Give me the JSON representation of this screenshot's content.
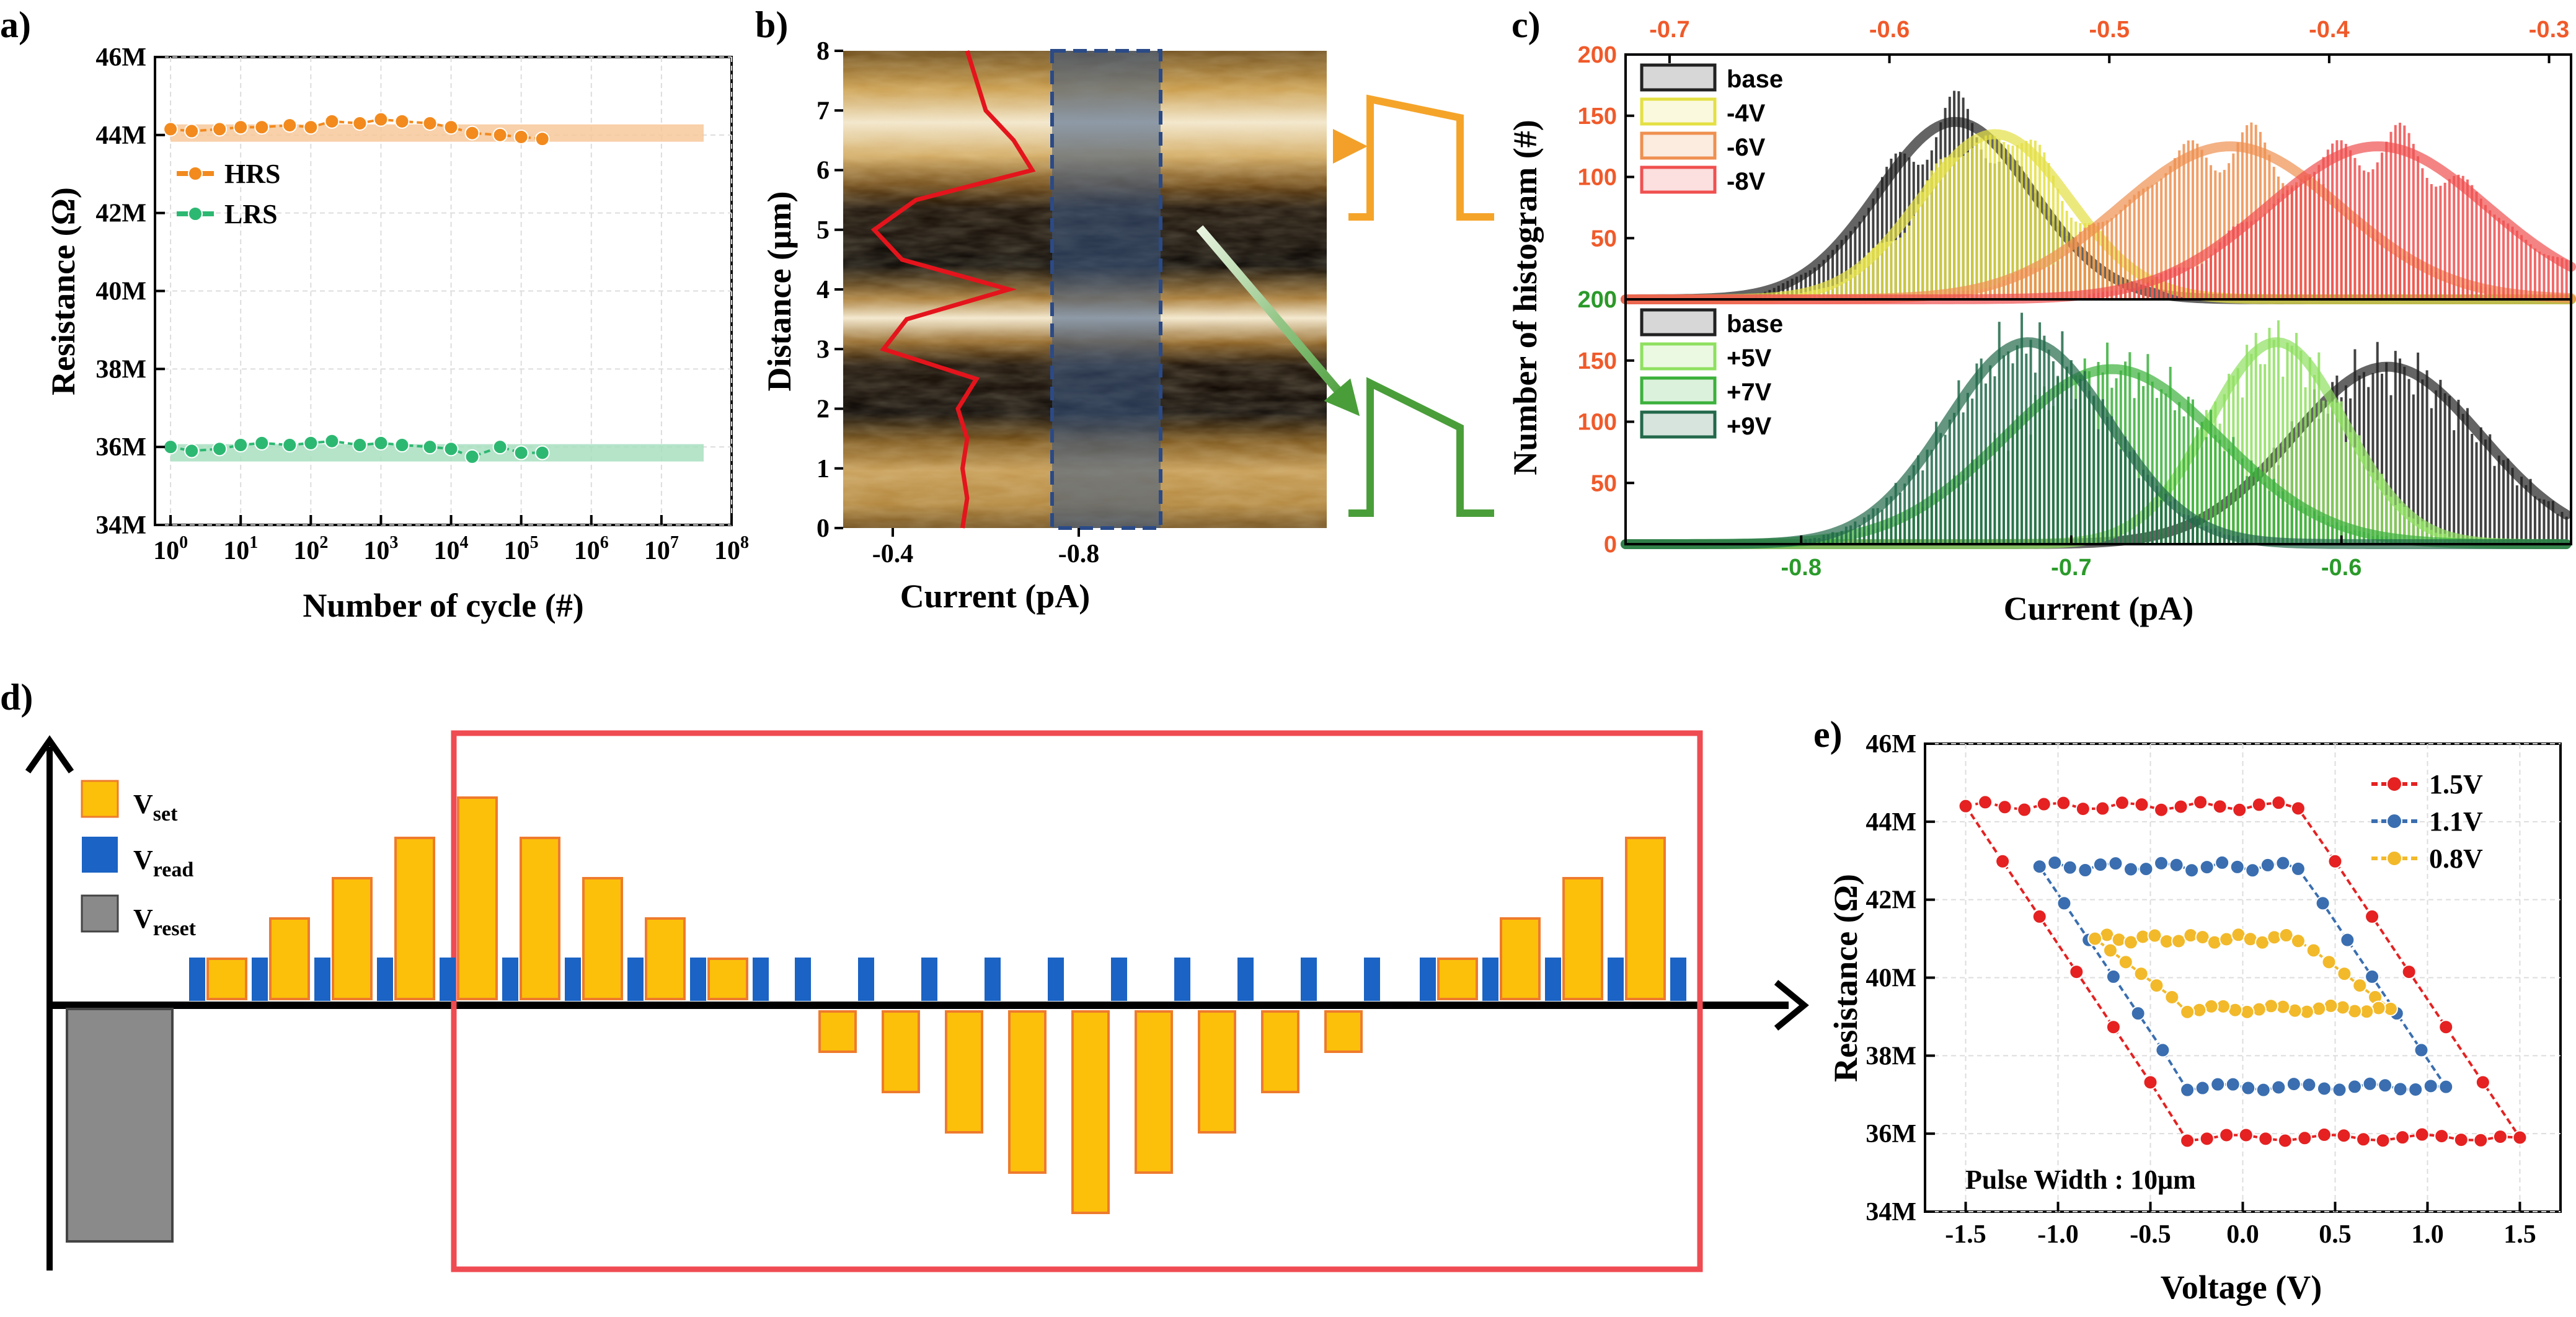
{
  "labels": {
    "a": "a)",
    "b": "b)",
    "c": "c)",
    "d": "d)",
    "e": "e)"
  },
  "chart_data": [
    {
      "id": "a",
      "type": "scatter",
      "xlabel": "Number of cycle (#)",
      "ylabel": "Resistance (Ω)",
      "xscale": "log",
      "xlim": [
        0.6,
        100000000
      ],
      "ylim": [
        34,
        46
      ],
      "xticks": [
        {
          "v": 1,
          "m": "10",
          "e": "0"
        },
        {
          "v": 10,
          "m": "10",
          "e": "1"
        },
        {
          "v": 100,
          "m": "10",
          "e": "2"
        },
        {
          "v": 1000,
          "m": "10",
          "e": "3"
        },
        {
          "v": 10000,
          "m": "10",
          "e": "4"
        },
        {
          "v": 100000,
          "m": "10",
          "e": "5"
        },
        {
          "v": 1000000,
          "m": "10",
          "e": "6"
        },
        {
          "v": 10000000,
          "m": "10",
          "e": "7"
        },
        {
          "v": 100000000,
          "m": "10",
          "e": "8"
        }
      ],
      "yticks": [
        {
          "v": 34,
          "t": "34M"
        },
        {
          "v": 36,
          "t": "36M"
        },
        {
          "v": 38,
          "t": "38M"
        },
        {
          "v": 40,
          "t": "40M"
        },
        {
          "v": 42,
          "t": "42M"
        },
        {
          "v": 44,
          "t": "44M"
        },
        {
          "v": 46,
          "t": "46M"
        }
      ],
      "legend": [
        "HRS",
        "LRS"
      ],
      "series": [
        {
          "name": "HRS",
          "color": "#f28a1e",
          "band": "#f7c89a",
          "bandY": 44.05,
          "x": [
            1,
            2,
            5,
            10,
            20,
            50,
            100,
            200,
            500,
            1000,
            2000,
            5000,
            10000,
            20000,
            50000,
            100000,
            200000
          ],
          "y": [
            44.15,
            44.1,
            44.15,
            44.2,
            44.2,
            44.25,
            44.2,
            44.35,
            44.3,
            44.4,
            44.35,
            44.3,
            44.2,
            44.05,
            44.0,
            43.95,
            43.9
          ]
        },
        {
          "name": "LRS",
          "color": "#2db872",
          "band": "#a8dfbf",
          "bandY": 35.85,
          "x": [
            1,
            2,
            5,
            10,
            20,
            50,
            100,
            200,
            500,
            1000,
            2000,
            5000,
            10000,
            20000,
            50000,
            100000,
            200000
          ],
          "y": [
            36.0,
            35.9,
            35.95,
            36.05,
            36.1,
            36.05,
            36.1,
            36.15,
            36.05,
            36.1,
            36.05,
            36.0,
            35.95,
            35.75,
            36.0,
            35.85,
            35.85
          ]
        }
      ]
    },
    {
      "id": "b",
      "type": "image-line",
      "xlabel": "Current (pA)",
      "ylabel": "Distance (μm)",
      "xticks": [
        "-0.4",
        "-0.8"
      ],
      "yticks": [
        "0",
        "1",
        "2",
        "3",
        "4",
        "5",
        "6",
        "7",
        "8"
      ],
      "profile": {
        "distance": [
          0,
          0.5,
          1,
          1.5,
          2,
          2.5,
          3,
          3.5,
          4,
          4.5,
          5,
          5.5,
          6,
          6.5,
          7,
          7.5,
          8
        ],
        "current": [
          -0.55,
          -0.56,
          -0.55,
          -0.56,
          -0.54,
          -0.58,
          -0.38,
          -0.43,
          -0.65,
          -0.42,
          -0.36,
          -0.45,
          -0.7,
          -0.66,
          -0.6,
          -0.58,
          -0.56
        ]
      }
    },
    {
      "id": "c-top",
      "type": "histogram",
      "ylabel": "Number of histogram (#)",
      "xlim": [
        -0.72,
        -0.29
      ],
      "ylim": [
        0,
        200
      ],
      "top_xticks": [
        "-0.7",
        "-0.6",
        "-0.5",
        "-0.4",
        "-0.3"
      ],
      "yticks": [
        "0",
        "50",
        "100",
        "150",
        "200"
      ],
      "series": [
        {
          "name": "base",
          "color": "#222222",
          "mu": -0.57,
          "sigma": 0.035,
          "peak": 145
        },
        {
          "name": "-4V",
          "color": "#e4e044",
          "mu": -0.552,
          "sigma": 0.034,
          "peak": 135
        },
        {
          "name": "-6V",
          "color": "#ee9050",
          "mu": -0.445,
          "sigma": 0.05,
          "peak": 125
        },
        {
          "name": "-8V",
          "color": "#f05050",
          "mu": -0.378,
          "sigma": 0.05,
          "peak": 125
        }
      ]
    },
    {
      "id": "c-bottom",
      "type": "histogram",
      "xlabel": "Current (pA)",
      "xlim": [
        -0.865,
        -0.515
      ],
      "ylim": [
        0,
        200
      ],
      "bottom_xticks": [
        "-0.8",
        "-0.7",
        "-0.6"
      ],
      "yticks": [
        "0",
        "50",
        "100",
        "150",
        "200"
      ],
      "series": [
        {
          "name": "base",
          "color": "#222222",
          "mu": -0.583,
          "sigma": 0.035,
          "peak": 145
        },
        {
          "name": "+5V",
          "color": "#8fe060",
          "mu": -0.624,
          "sigma": 0.025,
          "peak": 165
        },
        {
          "name": "+7V",
          "color": "#3cb13c",
          "mu": -0.685,
          "sigma": 0.04,
          "peak": 143
        },
        {
          "name": "+9V",
          "color": "#22694a",
          "mu": -0.716,
          "sigma": 0.03,
          "peak": 165
        }
      ]
    },
    {
      "id": "d",
      "type": "pulse-scheme",
      "legend": [
        {
          "main": "V",
          "sub": "set"
        },
        {
          "main": "V",
          "sub": "read"
        },
        {
          "main": "V",
          "sub": "reset"
        }
      ],
      "set_levels": [
        1,
        2,
        3,
        4,
        5,
        4,
        3,
        2,
        1
      ],
      "negative_levels": [
        1,
        2,
        3,
        4,
        5,
        4,
        3,
        2,
        1
      ],
      "return_levels": [
        1,
        2,
        3,
        4
      ]
    },
    {
      "id": "e",
      "type": "line",
      "xlabel": "Voltage (V)",
      "ylabel": "Resistance (Ω)",
      "xlim": [
        -1.72,
        1.72
      ],
      "ylim": [
        34,
        46
      ],
      "xticks": [
        "-1.5",
        "-1.0",
        "-0.5",
        "0.0",
        "0.5",
        "1.0",
        "1.5"
      ],
      "yticks": [
        "34M",
        "36M",
        "38M",
        "40M",
        "42M",
        "44M",
        "46M"
      ],
      "annotation": "Pulse Width : 10μm",
      "series": [
        {
          "name": "1.5V",
          "color": "#e52121",
          "vmax": 1.5,
          "high": 44.4,
          "low": 35.9
        },
        {
          "name": "1.1V",
          "color": "#3a6eb0",
          "vmax": 1.1,
          "high": 42.85,
          "low": 37.2
        },
        {
          "name": "0.8V",
          "color": "#f2b92a",
          "vmax": 0.8,
          "high": 41.0,
          "low": 39.2
        }
      ]
    }
  ]
}
